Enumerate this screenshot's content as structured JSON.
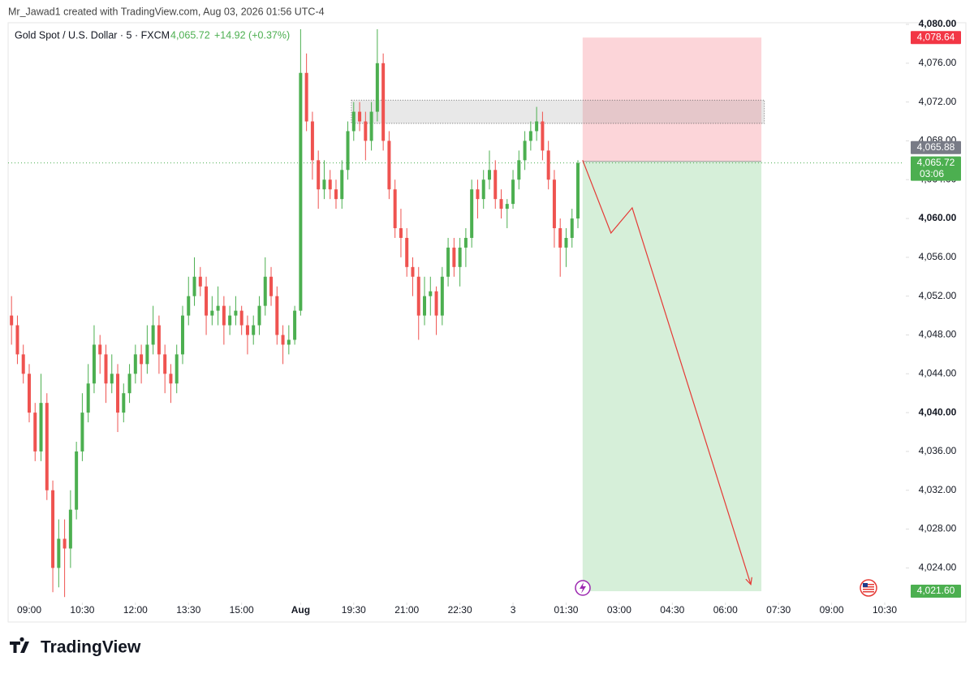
{
  "header": "Mr_Jawad1 created with TradingView.com, Aug 03, 2026 01:56 UTC-4",
  "brand": "TradingView",
  "chart_data": {
    "type": "candlestick",
    "title": "Gold Spot / U.S. Dollar · 5 · FXCM",
    "change": "+14.92 (+0.37%)",
    "last_price": {
      "value": 4065.72,
      "label": "4,065.72"
    },
    "countdown": "03:06",
    "up_color": "#4caf50",
    "down_color": "#ef5350",
    "xlim": [
      -0.3,
      151.3
    ],
    "ylim": [
      4020.6,
      4080
    ],
    "yticks": [
      {
        "value": 4024,
        "label": "4,024.00"
      },
      {
        "value": 4028,
        "label": "4,028.00"
      },
      {
        "value": 4032,
        "label": "4,032.00"
      },
      {
        "value": 4036,
        "label": "4,036.00"
      },
      {
        "value": 4040,
        "label": "4,040.00"
      },
      {
        "value": 4044,
        "label": "4,044.00"
      },
      {
        "value": 4048,
        "label": "4,048.00"
      },
      {
        "value": 4052,
        "label": "4,052.00"
      },
      {
        "value": 4056,
        "label": "4,056.00"
      },
      {
        "value": 4060,
        "label": "4,060.00"
      },
      {
        "value": 4064,
        "label": "4,064.00"
      },
      {
        "value": 4068,
        "label": "4,068.00"
      },
      {
        "value": 4072,
        "label": "4,072.00"
      },
      {
        "value": 4076,
        "label": "4,076.00"
      },
      {
        "value": 4080,
        "label": "4,080.00"
      }
    ],
    "xticks": [
      {
        "value": 3,
        "label": "09:00"
      },
      {
        "value": 12,
        "label": "10:30"
      },
      {
        "value": 21,
        "label": "12:00"
      },
      {
        "value": 30,
        "label": "13:30"
      },
      {
        "value": 39,
        "label": "15:00"
      },
      {
        "value": 49,
        "label": "Aug"
      },
      {
        "value": 58,
        "label": "19:30"
      },
      {
        "value": 67,
        "label": "21:00"
      },
      {
        "value": 76,
        "label": "22:30"
      },
      {
        "value": 85,
        "label": "3"
      },
      {
        "value": 94,
        "label": "01:30"
      },
      {
        "value": 103,
        "label": "03:00"
      },
      {
        "value": 112,
        "label": "04:30"
      },
      {
        "value": 121,
        "label": "06:00"
      },
      {
        "value": 130,
        "label": "07:30"
      },
      {
        "value": 139,
        "label": "09:00"
      },
      {
        "value": 148,
        "label": "10:30"
      }
    ],
    "ohlc": [
      [
        4050,
        4052,
        4047,
        4049
      ],
      [
        4049,
        4050,
        4045,
        4046
      ],
      [
        4046,
        4047,
        4043,
        4044
      ],
      [
        4044,
        4045,
        4039,
        4040
      ],
      [
        4040,
        4041,
        4035,
        4036
      ],
      [
        4036,
        4044,
        4035,
        4041
      ],
      [
        4041,
        4042,
        4031,
        4032
      ],
      [
        4032,
        4033,
        4021.5,
        4024
      ],
      [
        4024,
        4029,
        4022,
        4027
      ],
      [
        4027,
        4029,
        4021,
        4026
      ],
      [
        4026,
        4032,
        4024,
        4030
      ],
      [
        4030,
        4037,
        4029,
        4036
      ],
      [
        4036,
        4042,
        4035,
        4040
      ],
      [
        4040,
        4045,
        4039,
        4043
      ],
      [
        4043,
        4049,
        4042,
        4047
      ],
      [
        4047,
        4048,
        4044,
        4046
      ],
      [
        4046,
        4047,
        4041,
        4043
      ],
      [
        4043,
        4046,
        4042,
        4044
      ],
      [
        4044,
        4045,
        4038,
        4040
      ],
      [
        4040,
        4043,
        4039,
        4042
      ],
      [
        4042,
        4045,
        4041,
        4044
      ],
      [
        4044,
        4047,
        4043,
        4046
      ],
      [
        4046,
        4047,
        4043,
        4045
      ],
      [
        4045,
        4049,
        4044,
        4047
      ],
      [
        4047,
        4051,
        4046,
        4049
      ],
      [
        4049,
        4050,
        4044,
        4046
      ],
      [
        4046,
        4047,
        4042,
        4044
      ],
      [
        4044,
        4045,
        4041,
        4043
      ],
      [
        4043,
        4047,
        4042,
        4046
      ],
      [
        4046,
        4051,
        4045,
        4050
      ],
      [
        4050,
        4054,
        4049,
        4052
      ],
      [
        4052,
        4056,
        4051,
        4054
      ],
      [
        4054,
        4055,
        4052,
        4053
      ],
      [
        4053,
        4054,
        4048,
        4050
      ],
      [
        4050,
        4052,
        4049,
        4050.5
      ],
      [
        4050.5,
        4053,
        4049,
        4051
      ],
      [
        4051,
        4052,
        4047,
        4049
      ],
      [
        4049,
        4051,
        4048,
        4050
      ],
      [
        4050,
        4052,
        4049,
        4050.5
      ],
      [
        4050.5,
        4051,
        4048,
        4049
      ],
      [
        4049,
        4050,
        4046,
        4048
      ],
      [
        4048,
        4050,
        4047,
        4049
      ],
      [
        4049,
        4052,
        4048,
        4051
      ],
      [
        4051,
        4056,
        4050,
        4054
      ],
      [
        4054,
        4055,
        4051,
        4052
      ],
      [
        4052,
        4053,
        4047,
        4048
      ],
      [
        4048,
        4049,
        4045,
        4047
      ],
      [
        4047,
        4049,
        4046,
        4047.5
      ],
      [
        4047.5,
        4051,
        4047,
        4050.5
      ],
      [
        4050.5,
        4079.5,
        4050,
        4075
      ],
      [
        4075,
        4077,
        4069,
        4070
      ],
      [
        4070,
        4071,
        4064,
        4066
      ],
      [
        4066,
        4067,
        4061,
        4063
      ],
      [
        4063,
        4066,
        4062,
        4064
      ],
      [
        4064,
        4065,
        4062,
        4063
      ],
      [
        4063,
        4064,
        4061,
        4062
      ],
      [
        4062,
        4066,
        4061,
        4065
      ],
      [
        4065,
        4070,
        4064,
        4069
      ],
      [
        4069,
        4072,
        4068,
        4071
      ],
      [
        4071,
        4072,
        4069,
        4070
      ],
      [
        4070,
        4071,
        4066,
        4068
      ],
      [
        4068,
        4072,
        4067,
        4071
      ],
      [
        4071,
        4079.5,
        4070,
        4076
      ],
      [
        4076,
        4077,
        4067,
        4068
      ],
      [
        4068,
        4069,
        4062,
        4063
      ],
      [
        4063,
        4064,
        4058,
        4059
      ],
      [
        4059,
        4061,
        4056,
        4058
      ],
      [
        4058,
        4059,
        4054,
        4055
      ],
      [
        4055,
        4056,
        4052,
        4054
      ],
      [
        4054,
        4055,
        4047.5,
        4050
      ],
      [
        4050,
        4054,
        4049,
        4052
      ],
      [
        4052,
        4054,
        4050,
        4052.5
      ],
      [
        4052.5,
        4053,
        4048,
        4050
      ],
      [
        4050,
        4055,
        4049,
        4054
      ],
      [
        4054,
        4058,
        4053,
        4057
      ],
      [
        4057,
        4058,
        4054,
        4055
      ],
      [
        4055,
        4058,
        4053,
        4057
      ],
      [
        4057,
        4059,
        4055,
        4058
      ],
      [
        4058,
        4064,
        4057,
        4063
      ],
      [
        4063,
        4064,
        4060,
        4062
      ],
      [
        4062,
        4065,
        4061,
        4064
      ],
      [
        4064,
        4067,
        4063,
        4065
      ],
      [
        4065,
        4066,
        4061,
        4062
      ],
      [
        4062,
        4063,
        4060,
        4061
      ],
      [
        4061,
        4062,
        4059,
        4061.5
      ],
      [
        4061.5,
        4065,
        4061,
        4064
      ],
      [
        4064,
        4067,
        4063,
        4066
      ],
      [
        4066,
        4069,
        4065,
        4068
      ],
      [
        4068,
        4070,
        4067,
        4069
      ],
      [
        4069,
        4071.5,
        4068,
        4070
      ],
      [
        4070,
        4071,
        4066,
        4067
      ],
      [
        4067,
        4068,
        4063,
        4064
      ],
      [
        4064,
        4065,
        4057,
        4059
      ],
      [
        4059,
        4060,
        4054,
        4057
      ],
      [
        4057,
        4059,
        4055,
        4058
      ],
      [
        4058,
        4061,
        4057,
        4060
      ],
      [
        4060,
        4066,
        4059,
        4065.72
      ]
    ],
    "zone": {
      "x": [
        57.6,
        127.6
      ],
      "y": [
        4069.8,
        4072.2
      ]
    },
    "position": {
      "x": [
        96.8,
        127.1
      ],
      "entry": {
        "value": 4065.88,
        "label": "4,065.88"
      },
      "stop": {
        "value": 4078.64,
        "label": "4,078.64"
      },
      "target": {
        "value": 4021.6,
        "label": "4,021.60"
      }
    },
    "arrow": {
      "x": [
        96.8,
        101.6,
        105.2,
        125.3
      ],
      "y": [
        4066,
        4058.5,
        4061.1,
        4022.3
      ]
    }
  }
}
